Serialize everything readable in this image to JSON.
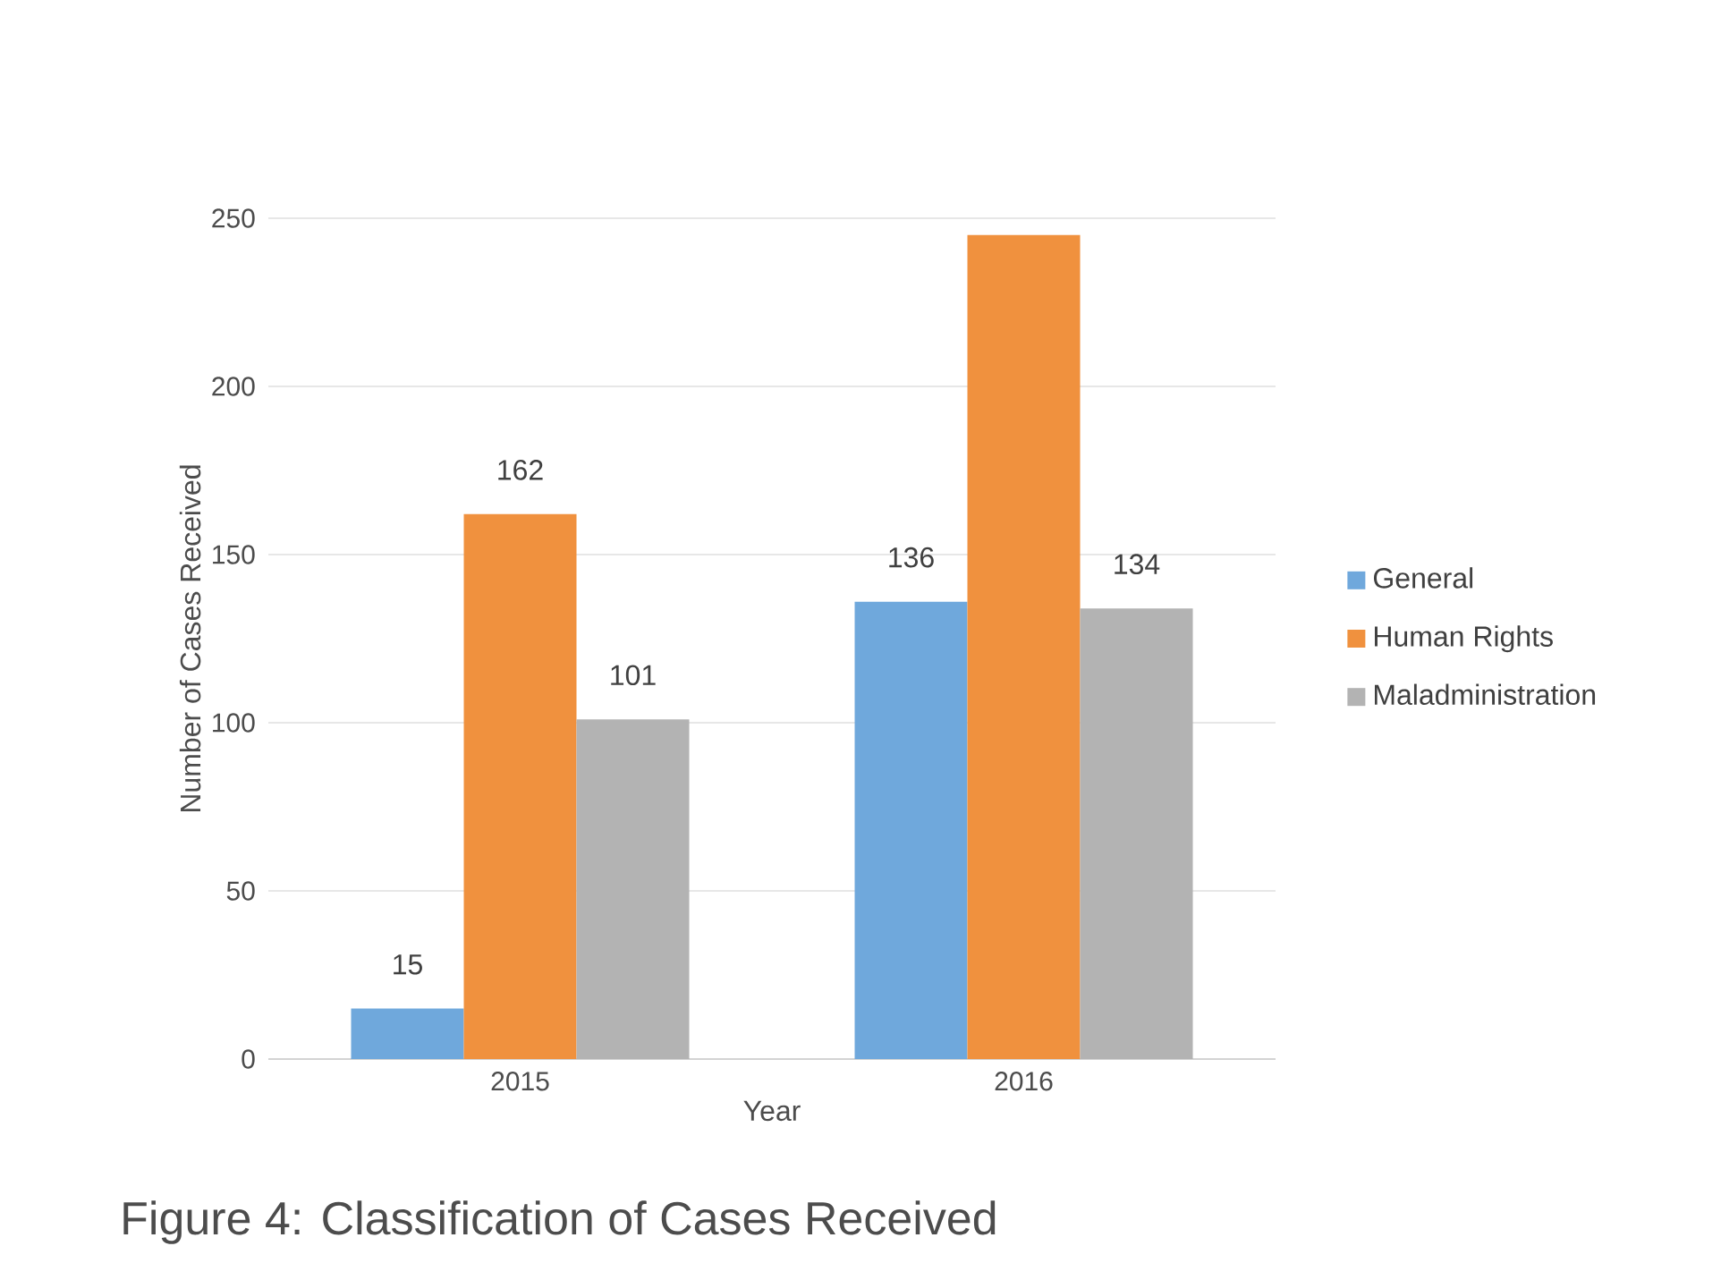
{
  "chart_data": {
    "type": "bar",
    "title": "Figure 4: Classification of Cases Received",
    "xlabel": "Year",
    "ylabel": "Number of Cases Received",
    "categories": [
      "2015",
      "2016"
    ],
    "series": [
      {
        "name": "General",
        "color": "#6fa8dc",
        "values": [
          15,
          136
        ],
        "value_labels": [
          "15",
          "136"
        ]
      },
      {
        "name": "Human Rights",
        "color": "#f0913e",
        "values": [
          162,
          245
        ],
        "value_labels": [
          "162",
          null
        ]
      },
      {
        "name": "Maladministration",
        "color": "#b3b3b3",
        "values": [
          101,
          134
        ],
        "value_labels": [
          "101",
          "134"
        ]
      }
    ],
    "ylim": [
      0,
      250
    ],
    "yticks": [
      0,
      50,
      100,
      150,
      200,
      250
    ],
    "grid": "y",
    "legend": "right"
  }
}
